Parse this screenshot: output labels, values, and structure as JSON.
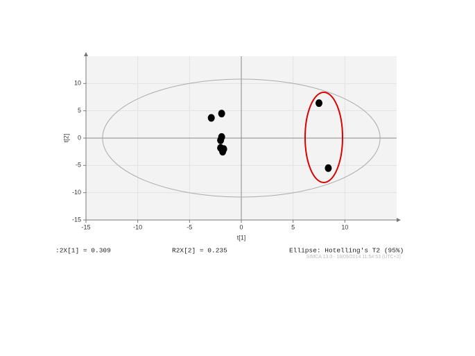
{
  "chart_data": {
    "type": "scatter",
    "xlabel": "t[1]",
    "ylabel": "t[2]",
    "xlim": [
      -15,
      15
    ],
    "ylim": [
      -15,
      15
    ],
    "xticks": [
      -15,
      -10,
      -5,
      0,
      5,
      10
    ],
    "yticks": [
      -15,
      -10,
      -5,
      0,
      5,
      10
    ],
    "grid": true,
    "ellipse_radii": [
      13.4,
      10.8
    ],
    "series": [
      {
        "color": "#000000",
        "x": [
          -2.9,
          -1.9,
          -1.9,
          -2.0,
          -2.0,
          -1.7,
          -1.8,
          7.5,
          8.4
        ],
        "values": [
          3.7,
          4.5,
          0.2,
          -0.4,
          -1.8,
          -2.0,
          -2.5,
          6.4,
          -5.5
        ]
      }
    ],
    "annotations": [
      ":2X[1] = 0.309",
      "R2X[2] = 0.235",
      "Ellipse: Hotelling's T2 (95%)",
      "SIMCA 13.0 - 18/09/2014 11:54:53 (UTC+2)"
    ]
  }
}
